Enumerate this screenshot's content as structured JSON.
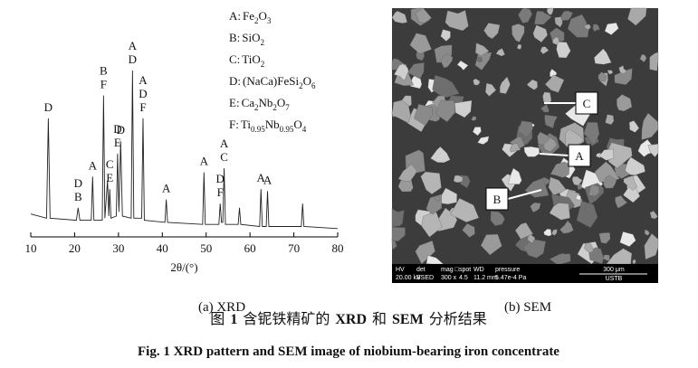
{
  "chart_data": {
    "type": "line",
    "x": [
      10,
      13.6,
      14,
      14.4,
      20.4,
      20.8,
      21.2,
      23.8,
      24.1,
      24.4,
      26.3,
      26.6,
      26.9,
      27.5,
      27.8,
      28,
      28.3,
      29.5,
      29.8,
      30.1,
      30.5,
      30.9,
      32.9,
      33.2,
      33.5,
      35.3,
      35.6,
      35.9,
      40.6,
      40.9,
      41.2,
      49.2,
      49.5,
      49.8,
      52.9,
      53.2,
      53.5,
      53.8,
      54.1,
      54.4,
      57.3,
      57.6,
      57.9,
      62.2,
      62.5,
      62.8,
      63.7,
      64,
      64.3,
      71.7,
      72,
      72.3,
      80
    ],
    "series": [
      {
        "color": "#222222",
        "values": [
          11,
          9,
          57,
          9,
          8,
          14,
          8,
          8,
          29,
          8,
          8,
          68,
          9,
          27,
          10,
          23,
          9,
          10,
          40,
          12,
          46,
          10,
          9,
          80,
          9,
          9,
          57,
          8,
          7,
          18,
          7,
          6,
          31,
          6,
          6,
          16,
          7,
          7,
          33,
          6,
          6,
          14,
          6,
          5,
          23,
          5,
          5,
          22,
          5,
          5,
          16,
          5,
          4
        ]
      }
    ],
    "xlim": [
      10,
      80
    ],
    "ylim": [
      0,
      100
    ],
    "xticks": [
      10,
      20,
      30,
      40,
      50,
      60,
      70,
      80
    ],
    "xlabel": "2θ/(°)",
    "annotations": [
      {
        "x": 14,
        "lines": [
          "D"
        ]
      },
      {
        "x": 20.8,
        "lines": [
          "D",
          "B"
        ]
      },
      {
        "x": 24.1,
        "lines": [
          "A"
        ]
      },
      {
        "x": 26.6,
        "lines": [
          "B",
          "F"
        ]
      },
      {
        "x": 28,
        "lines": [
          "C",
          "E"
        ]
      },
      {
        "x": 29.8,
        "lines": [
          "D",
          "E"
        ]
      },
      {
        "x": 30.5,
        "lines": [
          "D"
        ]
      },
      {
        "x": 33.2,
        "lines": [
          "A",
          "D"
        ]
      },
      {
        "x": 35.6,
        "lines": [
          "A",
          "D",
          "F"
        ]
      },
      {
        "x": 40.9,
        "lines": [
          "A"
        ]
      },
      {
        "x": 49.5,
        "lines": [
          "A"
        ]
      },
      {
        "x": 53.2,
        "lines": [
          "D",
          "F"
        ]
      },
      {
        "x": 54.1,
        "lines": [
          "A",
          "C"
        ]
      },
      {
        "x": 62.5,
        "lines": [
          "A"
        ]
      },
      {
        "x": 64,
        "lines": [
          "A"
        ]
      }
    ],
    "legend": [
      {
        "key": "A:",
        "parts": [
          "Fe",
          "2",
          "O",
          "3"
        ]
      },
      {
        "key": "B:",
        "parts": [
          "SiO",
          "2"
        ]
      },
      {
        "key": "C:",
        "parts": [
          "TiO",
          "2"
        ]
      },
      {
        "key": "D:",
        "parts": [
          "(NaCa)FeSi",
          "2",
          "O",
          "6"
        ]
      },
      {
        "key": "E:",
        "parts": [
          "Ca",
          "2",
          "Nb",
          "2",
          "O",
          "7"
        ]
      },
      {
        "key": "F:",
        "parts": [
          "Ti",
          "0.95",
          "Nb",
          "0.95",
          "O",
          "4"
        ]
      }
    ]
  },
  "sem": {
    "labels": [
      "C",
      "A",
      "B"
    ],
    "info": [
      [
        "HV",
        "20.00 kV"
      ],
      [
        "det",
        "BSED"
      ],
      [
        "mag □",
        "300 x"
      ],
      [
        "spot",
        "4.5"
      ],
      [
        "WD",
        "11.2 mm"
      ],
      [
        "pressure",
        "5.47e-4 Pa"
      ]
    ],
    "scale": "300 μm",
    "lab": "USTB"
  },
  "captions": {
    "a": "(a) XRD",
    "b": "(b) SEM",
    "zh": [
      "图",
      "1",
      "含铌铁精矿的",
      "XRD",
      "和",
      "SEM",
      "分析结果"
    ],
    "en": "Fig. 1 XRD pattern and SEM image of niobium-bearing iron concentrate"
  }
}
